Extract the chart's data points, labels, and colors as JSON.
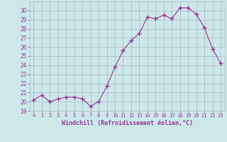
{
  "x": [
    0,
    1,
    2,
    3,
    4,
    5,
    6,
    7,
    8,
    9,
    10,
    11,
    12,
    13,
    14,
    15,
    16,
    17,
    18,
    19,
    20,
    21,
    22,
    23
  ],
  "y": [
    20.2,
    20.7,
    20.0,
    20.3,
    20.5,
    20.5,
    20.3,
    19.5,
    20.0,
    21.7,
    23.8,
    25.6,
    26.7,
    27.5,
    29.3,
    29.1,
    29.5,
    29.1,
    30.3,
    30.3,
    29.6,
    28.1,
    25.8,
    24.2
  ],
  "line_color": "#993399",
  "marker": "+",
  "marker_size": 4,
  "bg_color": "#cce8e8",
  "grid_color": "#aab8c8",
  "xlabel": "Windchill (Refroidissement éolien,°C)",
  "xlabel_color": "#993399",
  "tick_color": "#993399",
  "ylim": [
    19,
    31
  ],
  "xlim": [
    -0.5,
    23.5
  ],
  "yticks": [
    19,
    20,
    21,
    22,
    23,
    24,
    25,
    26,
    27,
    28,
    29,
    30
  ],
  "xticks": [
    0,
    1,
    2,
    3,
    4,
    5,
    6,
    7,
    8,
    9,
    10,
    11,
    12,
    13,
    14,
    15,
    16,
    17,
    18,
    19,
    20,
    21,
    22,
    23
  ]
}
